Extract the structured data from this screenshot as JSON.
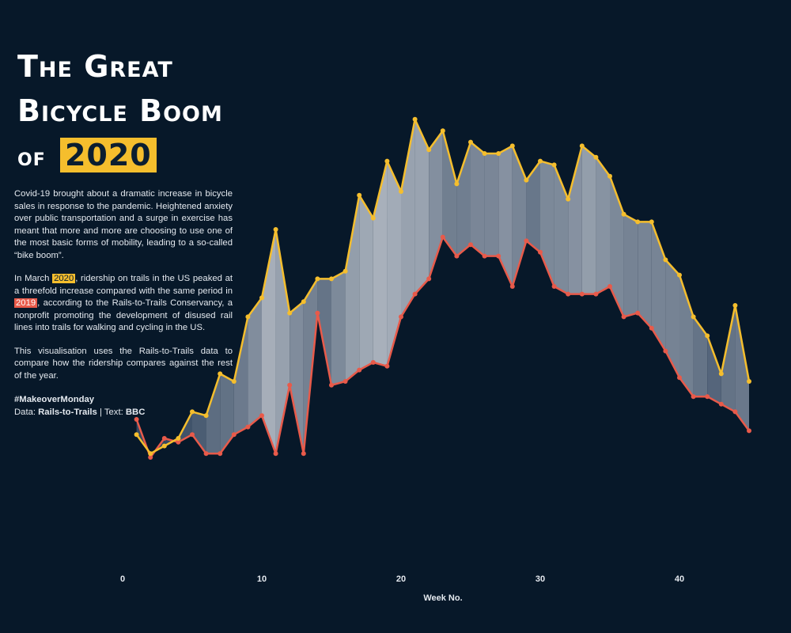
{
  "title": {
    "line1": "The Great",
    "line2": "Bicycle Boom",
    "line3_prefix": "of",
    "line3_highlight": "2020"
  },
  "description": {
    "p1": "Covid-19 brought about a dramatic increase in bicycle sales in response to the pandemic. Heightened anxiety over public transportation and a surge in exercise has meant that more and more are choosing to use one of the most basic forms of mobility, leading to a so-called “bike boom”.",
    "p2_a": "In March ",
    "p2_year_2020": "2020",
    "p2_b": ", ridership on trails in the US peaked at a threefold increase compared with the same period in ",
    "p2_year_2019": "2019",
    "p2_c": ", according to the Rails-to-Trails Conservancy, a nonprofit promoting the development of disused rail lines into trails for walking and cycling in the US.",
    "p3": "This visualisation uses the Rails-to-Trails data to compare how the ridership compares against the rest of the year.",
    "hashtag": "#MakeoverMonday",
    "data_label": "Data: ",
    "data_source": "Rails-to-Trails",
    "separator": " | Text: ",
    "text_source": "BBC"
  },
  "colors": {
    "background": "#071829",
    "series_2020": "#f5be2d",
    "series_2019": "#e85a4a"
  },
  "chart_data": {
    "type": "line",
    "title": "The Great Bicycle Boom of 2020",
    "xlabel": "Week No.",
    "ylabel": "",
    "xlim": [
      0,
      45
    ],
    "ylim": [
      0,
      100
    ],
    "xticks": [
      0,
      10,
      20,
      30,
      40
    ],
    "x": [
      1,
      2,
      3,
      4,
      5,
      6,
      7,
      8,
      9,
      10,
      11,
      12,
      13,
      14,
      15,
      16,
      17,
      18,
      19,
      20,
      21,
      22,
      23,
      24,
      25,
      26,
      27,
      28,
      29,
      30,
      31,
      32,
      33,
      34,
      35,
      36,
      37,
      38,
      39,
      40,
      41,
      42,
      43,
      44,
      45
    ],
    "series": [
      {
        "name": "2020",
        "color": "#f5be2d",
        "values": [
          21,
          16,
          18,
          20,
          27,
          26,
          37,
          35,
          52,
          57,
          75,
          53,
          56,
          62,
          62,
          64,
          84,
          78,
          93,
          85,
          104,
          96,
          101,
          87,
          98,
          95,
          95,
          97,
          88,
          93,
          92,
          83,
          97,
          94,
          89,
          79,
          77,
          77,
          67,
          63,
          52,
          47,
          37,
          55,
          35
        ]
      },
      {
        "name": "2019",
        "color": "#e85a4a",
        "values": [
          25,
          15,
          20,
          19,
          21,
          16,
          16,
          21,
          23,
          26,
          16,
          34,
          16,
          53,
          34,
          35,
          38,
          40,
          39,
          52,
          58,
          62,
          73,
          68,
          71,
          68,
          68,
          60,
          72,
          69,
          60,
          58,
          58,
          58,
          60,
          52,
          53,
          49,
          43,
          36,
          31,
          31,
          29,
          27,
          22
        ]
      }
    ]
  }
}
